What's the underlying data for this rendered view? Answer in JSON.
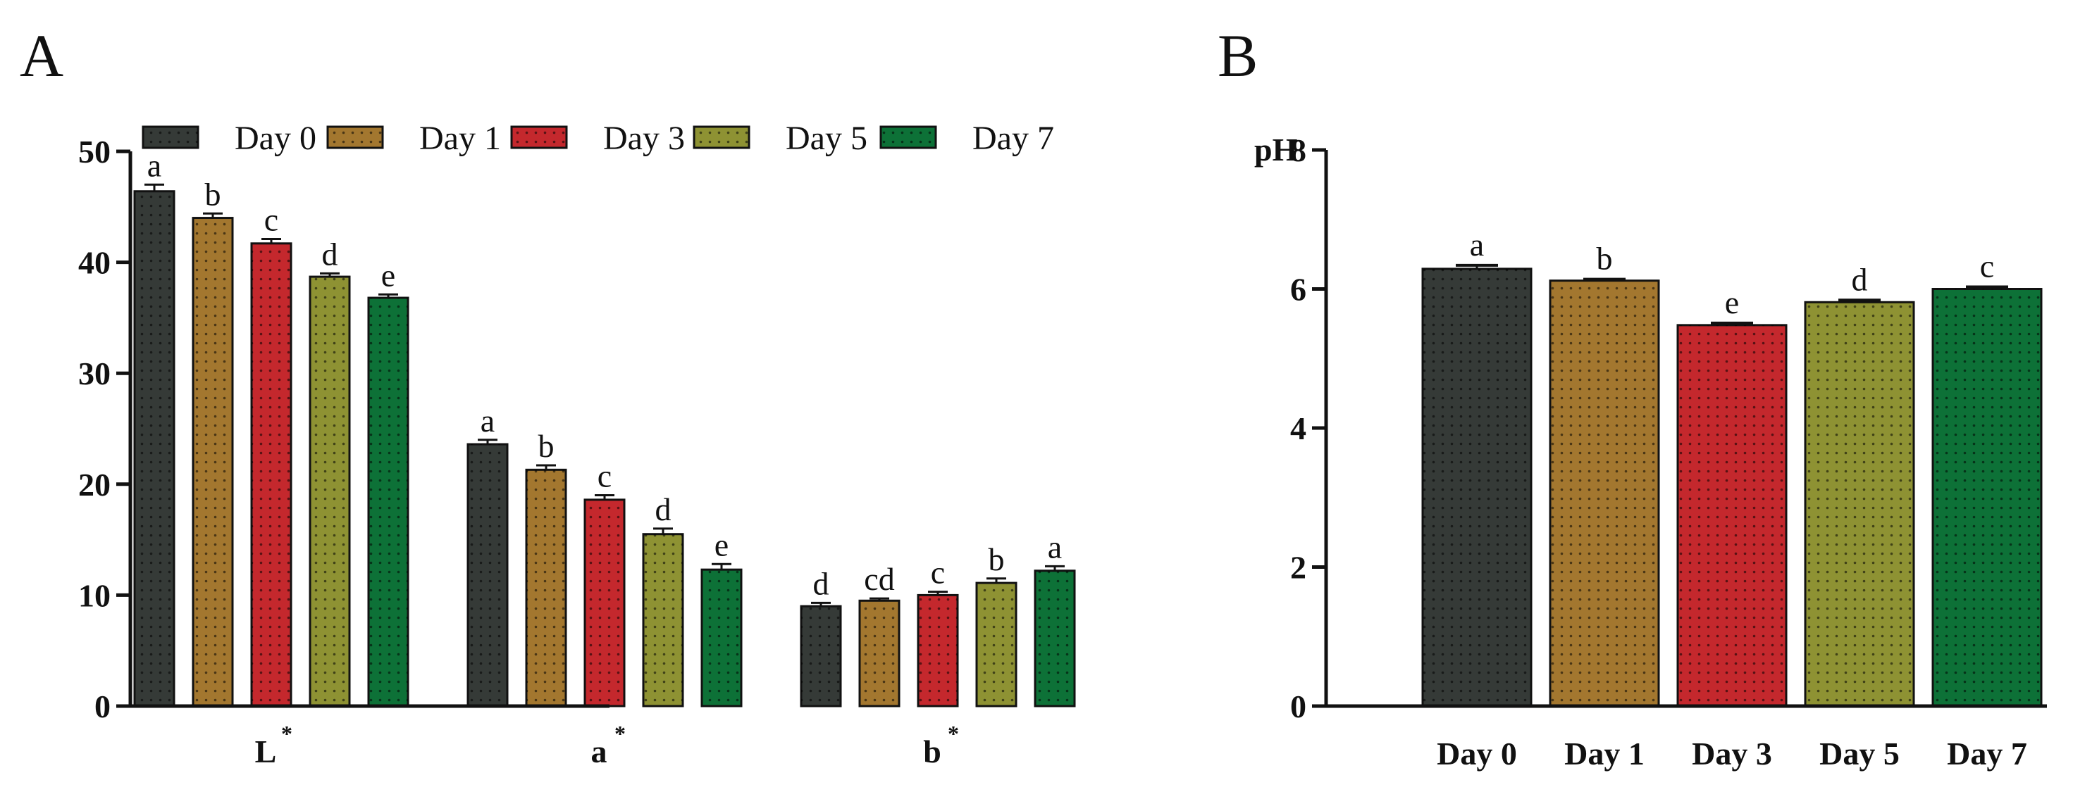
{
  "chart_data": [
    {
      "panel": "A",
      "type": "bar",
      "categories": [
        "L",
        "a",
        "b"
      ],
      "category_superscript": "*",
      "ylim": [
        0,
        50
      ],
      "yticks": [
        0,
        10,
        20,
        30,
        40,
        50
      ],
      "legend": [
        "Day 0",
        "Day 1",
        "Day 3",
        "Day 5",
        "Day 7"
      ],
      "series": [
        {
          "name": "Day 0",
          "color": "#353a37",
          "values": [
            46.4,
            23.6,
            9.0
          ],
          "errors": [
            0.6,
            0.4,
            0.3
          ],
          "letters": [
            "a",
            "a",
            "d"
          ]
        },
        {
          "name": "Day 1",
          "color": "#a3772f",
          "values": [
            44.0,
            21.3,
            9.5
          ],
          "errors": [
            0.4,
            0.4,
            0.2
          ],
          "letters": [
            "b",
            "b",
            "cd"
          ]
        },
        {
          "name": "Day 3",
          "color": "#c4282d",
          "values": [
            41.7,
            18.6,
            10.0
          ],
          "errors": [
            0.4,
            0.4,
            0.3
          ],
          "letters": [
            "c",
            "c",
            "c"
          ]
        },
        {
          "name": "Day 5",
          "color": "#8e9233",
          "values": [
            38.7,
            15.5,
            11.1
          ],
          "errors": [
            0.3,
            0.5,
            0.4
          ],
          "letters": [
            "d",
            "d",
            "b"
          ]
        },
        {
          "name": "Day 7",
          "color": "#0d7137",
          "values": [
            36.8,
            12.3,
            12.2
          ],
          "errors": [
            0.3,
            0.5,
            0.4
          ],
          "letters": [
            "e",
            "e",
            "a"
          ]
        }
      ]
    },
    {
      "panel": "B",
      "type": "bar",
      "ylabel": "pH",
      "ylim": [
        0,
        8
      ],
      "yticks": [
        0,
        2,
        4,
        6,
        8
      ],
      "categories": [
        "Day 0",
        "Day 1",
        "Day 3",
        "Day 5",
        "Day 7"
      ],
      "colors": [
        "#353a37",
        "#a3772f",
        "#c4282d",
        "#8e9233",
        "#0d7137"
      ],
      "values": [
        6.29,
        6.12,
        5.48,
        5.81,
        6.0
      ],
      "errors": [
        0.05,
        0.02,
        0.03,
        0.03,
        0.03
      ],
      "letters": [
        "a",
        "b",
        "e",
        "d",
        "c"
      ]
    }
  ]
}
